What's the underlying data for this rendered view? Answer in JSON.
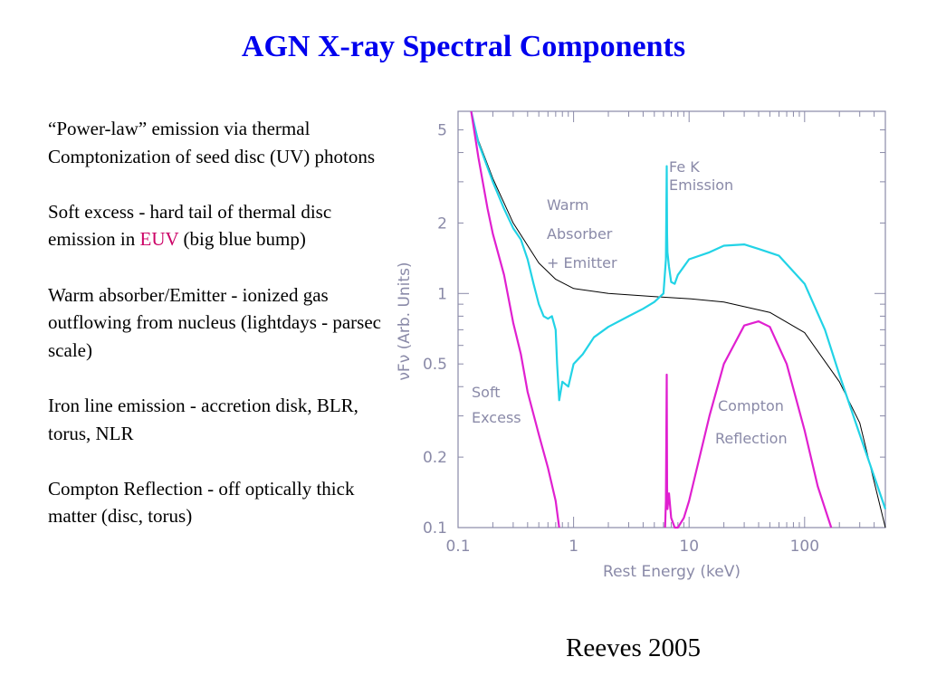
{
  "slide": {
    "title": "AGN X-ray Spectral Components",
    "credit": "Reeves 2005",
    "bullets": [
      {
        "text": "“Power-law” emission via thermal Comptonization of seed disc (UV) photons"
      },
      {
        "text_before": "Soft excess - hard tail of thermal disc emission in ",
        "highlight": "EUV",
        "text_after": " (big blue bump)"
      },
      {
        "text": "Warm absorber/Emitter - ionized gas outflowing from nucleus (lightdays - parsec scale)"
      },
      {
        "text": "Iron line emission - accretion disk, BLR, torus, NLR"
      },
      {
        "text": "Compton Reflection - off optically thick matter (disc, torus)"
      }
    ],
    "colors": {
      "title": "#0000ee",
      "highlight": "#cc0066"
    }
  },
  "chart_data": {
    "type": "line",
    "xlabel": "Rest Energy (keV)",
    "ylabel": "νFν (Arb. Units)",
    "x_scale": "log",
    "y_scale": "log",
    "xlim": [
      0.1,
      500
    ],
    "ylim": [
      0.1,
      6
    ],
    "xticks": [
      {
        "value": 0.1,
        "label": "0.1"
      },
      {
        "value": 1,
        "label": "1"
      },
      {
        "value": 10,
        "label": "10"
      },
      {
        "value": 100,
        "label": "100"
      }
    ],
    "yticks": [
      {
        "value": 0.1,
        "label": "0.1"
      },
      {
        "value": 0.2,
        "label": "0.2"
      },
      {
        "value": 0.5,
        "label": "0.5"
      },
      {
        "value": 1,
        "label": "1"
      },
      {
        "value": 2,
        "label": "2"
      },
      {
        "value": 5,
        "label": "5"
      }
    ],
    "grid": false,
    "series": [
      {
        "color": "#000000",
        "x": [
          0.13,
          0.15,
          0.2,
          0.3,
          0.5,
          0.7,
          1,
          2,
          5,
          10,
          20,
          50,
          100,
          200,
          300,
          500
        ],
        "y": [
          6.0,
          4.5,
          3.1,
          2.0,
          1.35,
          1.15,
          1.05,
          1.0,
          0.97,
          0.95,
          0.92,
          0.83,
          0.68,
          0.42,
          0.28,
          0.1
        ]
      },
      {
        "color": "#22d3e6",
        "x": [
          0.13,
          0.15,
          0.2,
          0.25,
          0.3,
          0.35,
          0.4,
          0.45,
          0.5,
          0.55,
          0.6,
          0.65,
          0.7,
          0.72,
          0.75,
          0.8,
          0.9,
          1.0,
          1.2,
          1.5,
          2,
          3,
          4,
          5,
          6,
          6.3,
          6.4,
          6.45,
          6.5,
          6.7,
          7,
          7.5,
          8,
          10,
          15,
          20,
          30,
          40,
          60,
          100,
          150,
          200,
          300,
          500
        ],
        "y": [
          6.0,
          4.4,
          3.0,
          2.3,
          1.9,
          1.7,
          1.4,
          1.1,
          0.9,
          0.8,
          0.78,
          0.8,
          0.7,
          0.5,
          0.35,
          0.42,
          0.4,
          0.5,
          0.55,
          0.65,
          0.72,
          0.8,
          0.86,
          0.92,
          1.0,
          1.4,
          3.5,
          1.8,
          1.5,
          1.3,
          1.12,
          1.1,
          1.2,
          1.4,
          1.5,
          1.6,
          1.62,
          1.55,
          1.45,
          1.1,
          0.7,
          0.45,
          0.25,
          0.12
        ]
      },
      {
        "color": "#e020d0",
        "x": [
          0.13,
          0.15,
          0.18,
          0.2,
          0.25,
          0.3,
          0.35,
          0.4,
          0.5,
          0.6,
          0.7,
          0.75
        ],
        "y": [
          6.0,
          3.8,
          2.3,
          1.8,
          1.2,
          0.75,
          0.55,
          0.38,
          0.25,
          0.18,
          0.13,
          0.1
        ]
      },
      {
        "color": "#e020d0",
        "x": [
          6.2,
          6.3,
          6.4,
          6.45,
          6.5,
          6.7,
          7,
          7.5,
          8,
          9,
          10,
          15,
          20,
          30,
          40,
          50,
          70,
          100,
          130,
          170
        ],
        "y": [
          0.1,
          0.13,
          0.45,
          0.15,
          0.12,
          0.14,
          0.11,
          0.1,
          0.1,
          0.11,
          0.13,
          0.3,
          0.5,
          0.73,
          0.76,
          0.72,
          0.5,
          0.26,
          0.15,
          0.1
        ]
      }
    ],
    "annotations": [
      {
        "lines": [
          "Fe K",
          "Emission"
        ]
      },
      {
        "lines": [
          "Warm",
          "Absorber",
          "+ Emitter"
        ]
      },
      {
        "lines": [
          "Soft",
          "Excess"
        ]
      },
      {
        "lines": [
          "Compton",
          "Reflection"
        ]
      }
    ]
  }
}
